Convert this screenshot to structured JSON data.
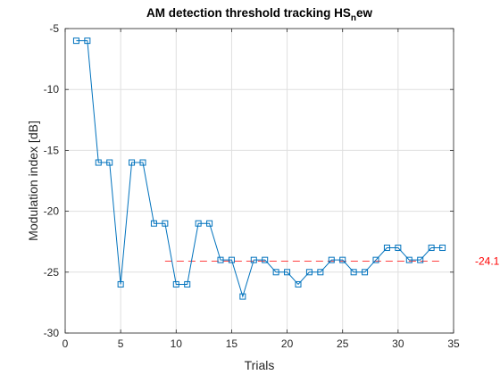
{
  "chart_data": {
    "type": "line",
    "title": "AM detection threshold tracking HS",
    "title_subscript": "n",
    "title_suffix": "ew",
    "xlabel": "Trials",
    "ylabel": "Modulation index [dB]",
    "xlim": [
      0,
      35
    ],
    "ylim": [
      -30,
      -5
    ],
    "xticks": [
      0,
      5,
      10,
      15,
      20,
      25,
      30,
      35
    ],
    "yticks": [
      -30,
      -25,
      -20,
      -15,
      -10,
      -5
    ],
    "grid": true,
    "series": [
      {
        "marker": "square",
        "color": "#0072bd",
        "x": [
          1,
          2,
          3,
          4,
          5,
          6,
          7,
          8,
          9,
          10,
          11,
          12,
          13,
          14,
          15,
          16,
          17,
          18,
          19,
          20,
          21,
          22,
          23,
          24,
          25,
          26,
          27,
          28,
          29,
          30,
          31,
          32,
          33,
          34
        ],
        "y": [
          -6,
          -6,
          -16,
          -16,
          -26,
          -16,
          -16,
          -21,
          -21,
          -26,
          -26,
          -21,
          -21,
          -24,
          -24,
          -27,
          -24,
          -24,
          -25,
          -25,
          -26,
          -25,
          -25,
          -24,
          -24,
          -25,
          -25,
          -24,
          -23,
          -23,
          -24,
          -24,
          -23,
          -23
        ]
      }
    ],
    "reference_line": {
      "y": -24.1,
      "x_start": 9,
      "x_end": 34,
      "style": "dashed",
      "color": "#ff0000",
      "label": "-24.1"
    }
  }
}
